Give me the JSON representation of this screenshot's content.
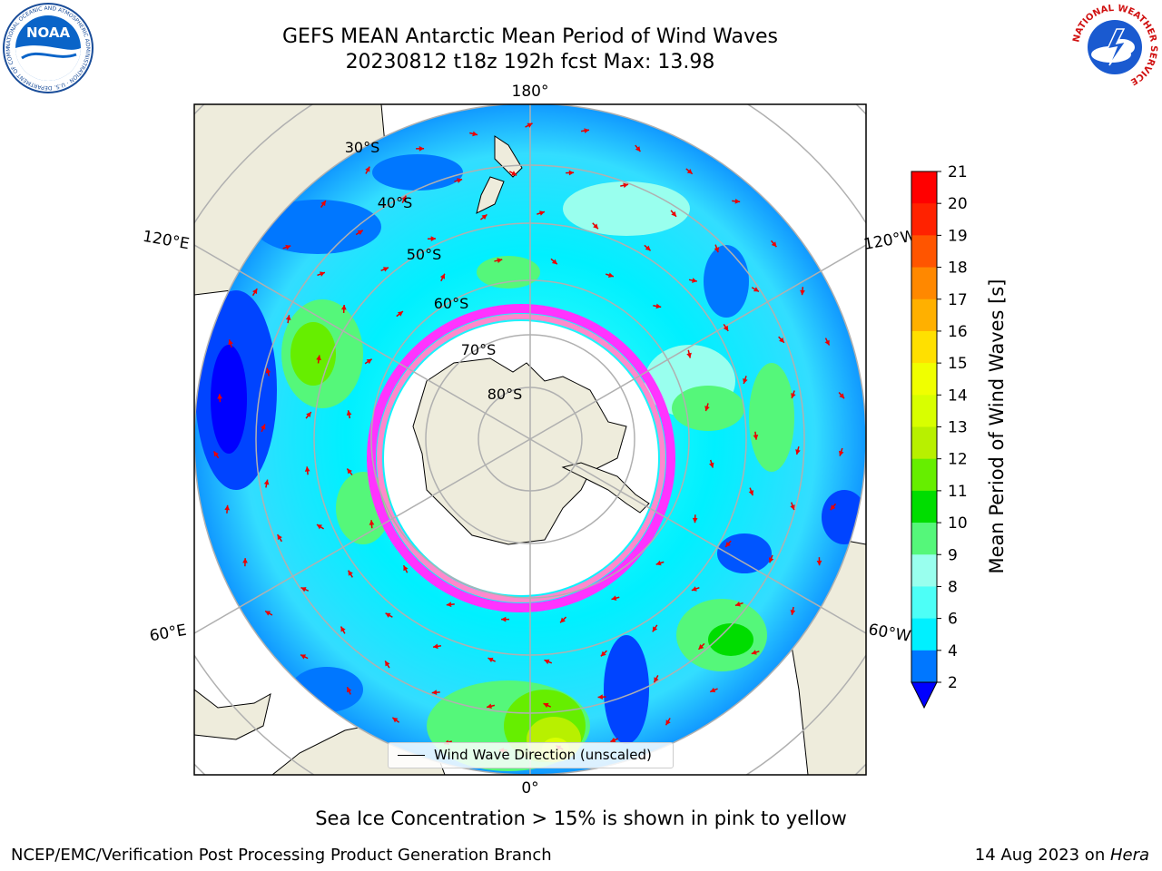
{
  "title": {
    "line1": "GEFS MEAN Antarctic Mean Period of Wind Waves",
    "line2": "20230812 t18z 192h fcst   Max: 13.98"
  },
  "logos": {
    "left": "NOAA",
    "left_ring_text": "NATIONAL OCEANIC AND ATMOSPHERIC ADMINISTRATION · U.S. DEPARTMENT OF COMMERCE",
    "right_ring_text": "NATIONAL WEATHER SERVICE"
  },
  "map": {
    "projection": "south-polar-stereographic",
    "lon_labels": {
      "top": "180°",
      "bottom": "0°",
      "left_upper": "120°E",
      "left_lower": "60°E",
      "right_upper": "120°W",
      "right_lower": "60°W"
    },
    "lat_labels": [
      "30°S",
      "40°S",
      "50°S",
      "60°S",
      "70°S",
      "80°S"
    ],
    "land_color": "#eeecdc",
    "ice_colors": [
      "#ff33ff",
      "#ff88cc",
      "#ffd040"
    ]
  },
  "colorbar": {
    "label": "Mean Period of Wind Waves [s]",
    "ticks": [
      "21",
      "20",
      "19",
      "18",
      "17",
      "16",
      "15",
      "14",
      "13",
      "12",
      "11",
      "10",
      "9",
      "8",
      "6",
      "4",
      "2"
    ],
    "colors": [
      "#ff0000",
      "#ff2200",
      "#ff5500",
      "#ff8800",
      "#ffb000",
      "#ffe000",
      "#f0ff00",
      "#d8ff00",
      "#b8f000",
      "#66ee00",
      "#00dd00",
      "#55f77a",
      "#99ffee",
      "#4dfff7",
      "#00f0ff",
      "#0077ff"
    ],
    "under_color": "#0000ff",
    "extend": "min"
  },
  "legend": {
    "label": "Wind Wave Direction (unscaled)"
  },
  "note": "Sea Ice Concentration > 15% is shown in pink to yellow",
  "credit": "NCEP/EMC/Verification Post Processing Product Generation Branch",
  "date_text": "14 Aug 2023 on ",
  "date_machine": "Hera"
}
